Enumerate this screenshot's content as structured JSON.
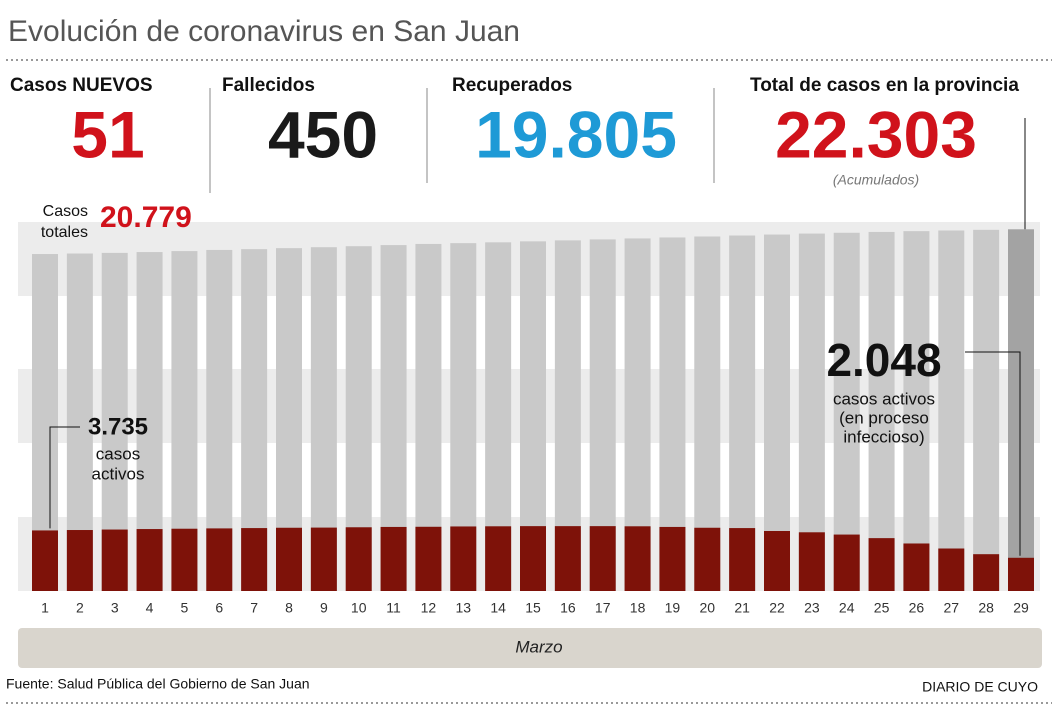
{
  "chart_data": {
    "type": "bar",
    "title": "Evolución de coronavirus en San Juan",
    "kpis": [
      {
        "label": "Casos NUEVOS",
        "value": "51",
        "color": "#d0121b"
      },
      {
        "label": "Fallecidos",
        "value": "450",
        "color": "#1a1a1a"
      },
      {
        "label": "Recuperados",
        "value": "19.805",
        "color": "#1e9ad6"
      },
      {
        "label": "Total de casos en la provincia",
        "value": "22.303",
        "color": "#d0121b",
        "note": "(Acumulados)"
      }
    ],
    "categories": [
      "1",
      "2",
      "3",
      "4",
      "5",
      "6",
      "7",
      "8",
      "9",
      "10",
      "11",
      "12",
      "13",
      "14",
      "15",
      "16",
      "17",
      "18",
      "19",
      "20",
      "21",
      "22",
      "23",
      "24",
      "25",
      "26",
      "27",
      "28",
      "29"
    ],
    "x_label": "Marzo",
    "ylim": [
      0,
      23000
    ],
    "totals": {
      "color": "#c9c9c9",
      "highlight_color": "#a3a3a3",
      "values": [
        20779,
        20810,
        20850,
        20900,
        20960,
        21030,
        21080,
        21140,
        21200,
        21260,
        21330,
        21400,
        21450,
        21500,
        21560,
        21620,
        21680,
        21740,
        21800,
        21860,
        21920,
        21980,
        22040,
        22090,
        22140,
        22190,
        22230,
        22270,
        22303
      ],
      "value_labels": [
        "20.779",
        null,
        null,
        null,
        null,
        null,
        null,
        null,
        null,
        null,
        null,
        null,
        null,
        null,
        null,
        null,
        null,
        null,
        null,
        null,
        null,
        null,
        null,
        null,
        null,
        null,
        null,
        null,
        null
      ],
      "note": [
        "Casos",
        "totales"
      ]
    },
    "active": {
      "color": "#7e1209",
      "values": [
        3735,
        3760,
        3790,
        3820,
        3840,
        3860,
        3880,
        3900,
        3910,
        3930,
        3950,
        3960,
        3980,
        3990,
        4000,
        4000,
        4000,
        3990,
        3950,
        3900,
        3880,
        3700,
        3620,
        3480,
        3260,
        2930,
        2620,
        2270,
        2048
      ],
      "value_labels": [
        "3.735",
        null,
        null,
        null,
        null,
        null,
        null,
        null,
        null,
        null,
        null,
        null,
        null,
        null,
        null,
        null,
        null,
        null,
        null,
        null,
        null,
        null,
        null,
        null,
        null,
        null,
        null,
        null,
        "2.048"
      ],
      "notes": [
        [
          "casos",
          "activos"
        ],
        [
          "casos activos",
          "(en proceso",
          "infeccioso)"
        ]
      ]
    },
    "source": "Fuente: Salud Pública del Gobierno de San Juan",
    "brand": "DIARIO DE CUYO"
  }
}
